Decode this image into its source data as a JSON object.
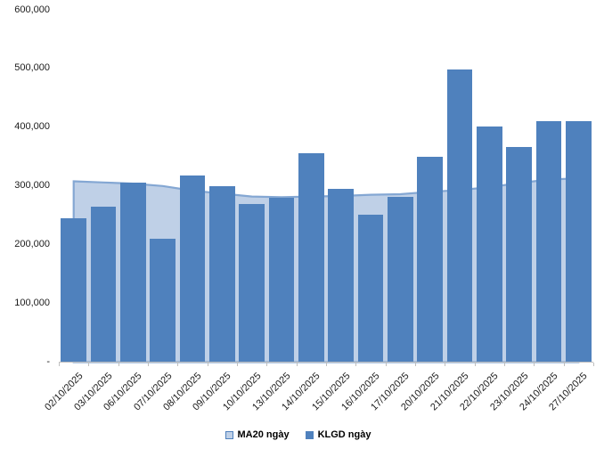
{
  "chart_data": {
    "type": "bar",
    "title": "",
    "categories": [
      "02/10/2025",
      "03/10/2025",
      "06/10/2025",
      "07/10/2025",
      "08/10/2025",
      "09/10/2025",
      "10/10/2025",
      "13/10/2025",
      "14/10/2025",
      "15/10/2025",
      "16/10/2025",
      "17/10/2025",
      "20/10/2025",
      "21/10/2025",
      "22/10/2025",
      "23/10/2025",
      "24/10/2025",
      "27/10/2025"
    ],
    "series": [
      {
        "name": "MA20 ngày",
        "type": "area",
        "fill_color": "#BFD0E7",
        "line_color": "#84A7D3",
        "values": [
          308000,
          306000,
          304000,
          300000,
          292000,
          287000,
          282000,
          281000,
          282000,
          283000,
          285000,
          286000,
          290000,
          293000,
          298000,
          305000,
          311000,
          313000
        ]
      },
      {
        "name": "KLGD ngày",
        "type": "bar",
        "fill_color": "#4F81BD",
        "values": [
          245000,
          265000,
          305000,
          210000,
          318000,
          300000,
          270000,
          280000,
          355000,
          295000,
          251000,
          282000,
          350000,
          498000,
          401000,
          366000,
          411000,
          411000
        ]
      }
    ],
    "xlabel": "",
    "ylabel": "",
    "ylim": [
      0,
      600000
    ],
    "ytick_interval": 100000,
    "ytick_labels": [
      "-",
      "100,000",
      "200,000",
      "300,000",
      "400,000",
      "500,000",
      "600,000"
    ],
    "grid": false,
    "legend_position": "bottom"
  },
  "axis": {
    "line_color": "#BFBFBF",
    "text_color": "#1B1B1B"
  }
}
